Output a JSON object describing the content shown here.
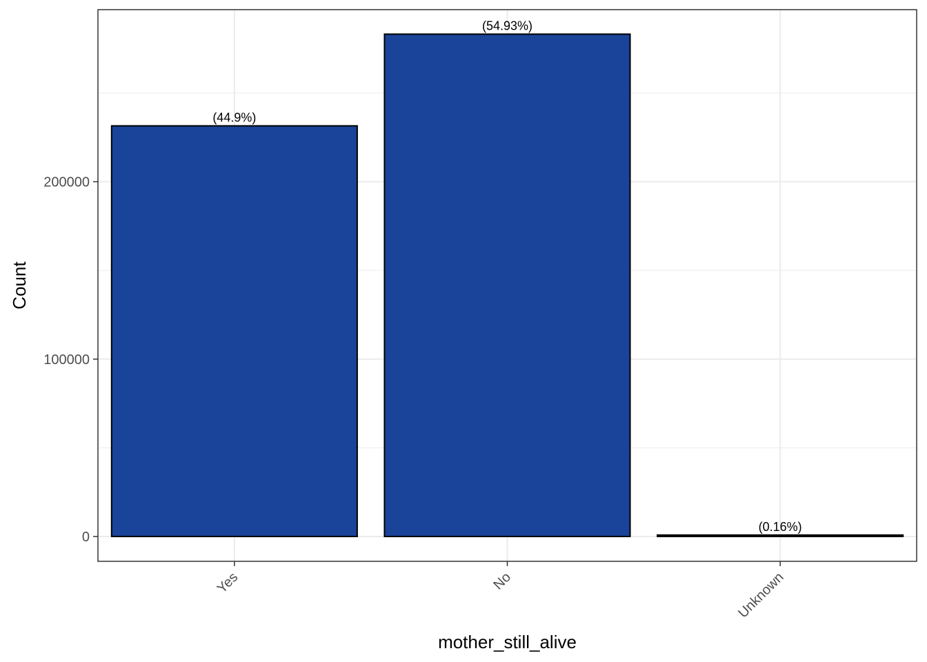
{
  "chart_data": {
    "type": "bar",
    "title": "",
    "xlabel": "mother_still_alive",
    "ylabel": "Count",
    "categories": [
      "Yes",
      "No",
      "Unknown"
    ],
    "values": [
      231500,
      283200,
      830
    ],
    "data_labels": [
      "(44.9%)",
      "(54.93%)",
      "(0.16%)"
    ],
    "ylim": [
      -14000,
      297000
    ],
    "y_ticks": [
      0,
      100000,
      200000
    ],
    "y_tick_labels": [
      "0",
      "100000",
      "200000"
    ],
    "y_minor_ticks": [
      50000,
      150000,
      250000
    ],
    "grid": true,
    "x_tick_rotation": "45 degrees",
    "colors": {
      "bar_fill": "#1a4499",
      "bar_stroke": "#000000",
      "grid": "#ebebeb",
      "panel_border": "#333333"
    }
  }
}
